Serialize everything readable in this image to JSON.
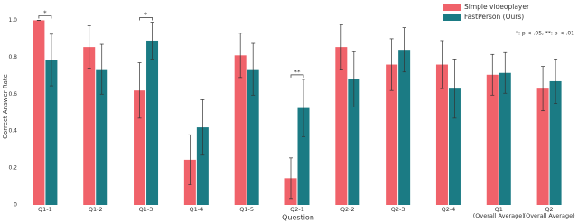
{
  "chart_data": {
    "type": "bar",
    "y_label": "Correct Answer Rate",
    "x_label": "Question",
    "categories": [
      "Q1-1",
      "Q1-2",
      "Q1-3",
      "Q1-4",
      "Q1-5",
      "Q2-1",
      "Q2-2",
      "Q2-3",
      "Q2-4",
      "Q1\n(Overall Average)",
      "Q2\n(Overall Average)"
    ],
    "series": [
      {
        "name": "Simple videoplayer",
        "color": "#f0626a",
        "values": [
          1.0,
          0.855,
          0.62,
          0.245,
          0.81,
          0.145,
          0.855,
          0.76,
          0.76,
          0.705,
          0.63
        ],
        "errors": [
          0,
          0.115,
          0.15,
          0.135,
          0.12,
          0.11,
          0.12,
          0.14,
          0.13,
          0.11,
          0.12
        ]
      },
      {
        "name": "FastPerson (Ours)",
        "color": "#1b7b84",
        "values": [
          0.785,
          0.735,
          0.89,
          0.42,
          0.735,
          0.525,
          0.68,
          0.84,
          0.63,
          0.715,
          0.67
        ],
        "errors": [
          0.14,
          0.135,
          0.1,
          0.15,
          0.14,
          0.155,
          0.15,
          0.12,
          0.16,
          0.11,
          0.12
        ]
      }
    ],
    "annotations": [
      {
        "text": "*",
        "category": "Q1-1"
      },
      {
        "text": "*",
        "category": "Q1-3"
      },
      {
        "text": "**",
        "category": "Q2-1"
      }
    ],
    "note": "*: p < .05, **: p < .01",
    "ylim": [
      0,
      1.1
    ],
    "yticks": [
      0,
      0.2,
      0.4,
      0.6,
      0.8,
      {
        "value": 1,
        "label": "1.0"
      }
    ],
    "grid": false,
    "legend": "top-right"
  }
}
